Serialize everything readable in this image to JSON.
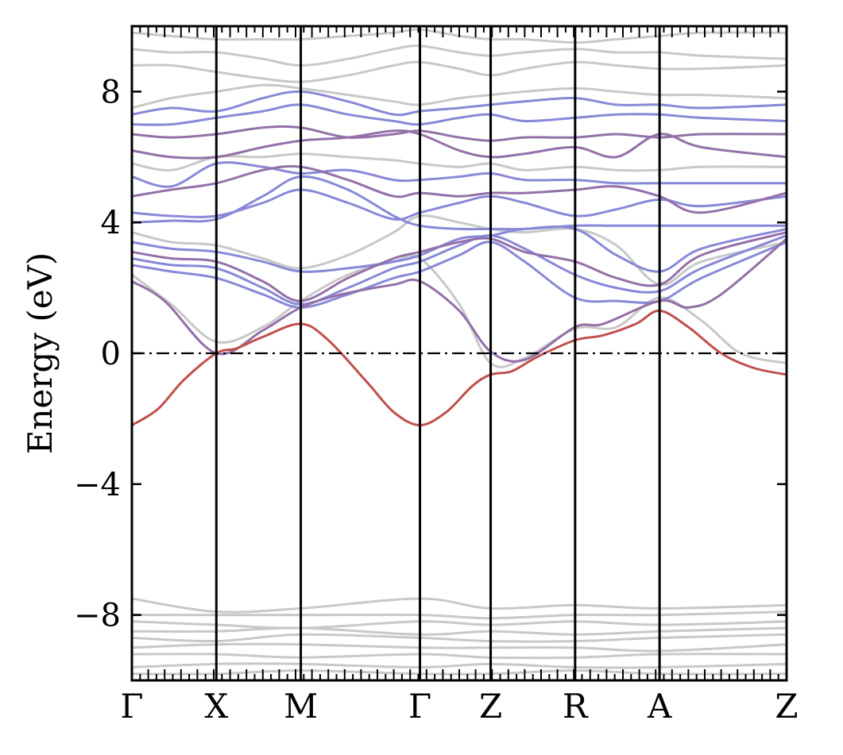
{
  "chart_data": {
    "type": "line",
    "title": "",
    "xlabel": "",
    "ylabel": "Energy (eV)",
    "ylim": [
      -10,
      10
    ],
    "yticks": [
      {
        "value": 8,
        "label": "8"
      },
      {
        "value": 4,
        "label": "4"
      },
      {
        "value": 0,
        "label": "0"
      },
      {
        "value": -4,
        "label": "−4"
      },
      {
        "value": -8,
        "label": "−8"
      }
    ],
    "xlim": [
      0,
      1
    ],
    "kpoints": [
      {
        "label": "Γ",
        "position": 0.0
      },
      {
        "label": "X",
        "position": 0.129
      },
      {
        "label": "M",
        "position": 0.258
      },
      {
        "label": "Γ",
        "position": 0.44
      },
      {
        "label": "Z",
        "position": 0.548
      },
      {
        "label": "R",
        "position": 0.677
      },
      {
        "label": "A",
        "position": 0.806
      },
      {
        "label": "Z",
        "position": 1.0
      }
    ],
    "fermi_level": 0,
    "grid": false,
    "colors": {
      "red_band": "#c0504d",
      "purple_band": "#9370a8",
      "blue_band": "#8888d8",
      "gray_band": "#c8c8c8",
      "frame": "#000000"
    },
    "series": [
      {
        "character": "red",
        "x": [
          0,
          0.04,
          0.08,
          0.129,
          0.16,
          0.2,
          0.258,
          0.3,
          0.36,
          0.4,
          0.44,
          0.48,
          0.52,
          0.548,
          0.58,
          0.62,
          0.677,
          0.72,
          0.77,
          0.806,
          0.85,
          0.9,
          0.95,
          1.0
        ],
        "y": [
          -2.2,
          -1.7,
          -0.8,
          0.0,
          0.15,
          0.5,
          0.9,
          0.4,
          -0.9,
          -1.8,
          -2.2,
          -1.8,
          -1.0,
          -0.65,
          -0.55,
          -0.1,
          0.4,
          0.55,
          0.9,
          1.3,
          0.8,
          0.0,
          -0.45,
          -0.65
        ]
      },
      {
        "character": "purple",
        "x": [
          0,
          0.05,
          0.129,
          0.2,
          0.258,
          0.32,
          0.4,
          0.44,
          0.5,
          0.548,
          0.6,
          0.677,
          0.72,
          0.806,
          0.85,
          0.9,
          1.0
        ],
        "y": [
          2.2,
          1.6,
          0.0,
          0.7,
          1.4,
          1.8,
          2.1,
          2.2,
          1.3,
          0.05,
          -0.2,
          0.8,
          0.9,
          1.6,
          1.4,
          1.8,
          3.5
        ]
      },
      {
        "character": "gray",
        "x": [
          0,
          0.06,
          0.129,
          0.2,
          0.258,
          0.33,
          0.4,
          0.44,
          0.5,
          0.548,
          0.6,
          0.677,
          0.74,
          0.806,
          0.87,
          0.93,
          1.0
        ],
        "y": [
          2.4,
          1.5,
          0.35,
          0.8,
          1.6,
          2.4,
          2.8,
          2.9,
          1.5,
          -0.3,
          -0.15,
          0.75,
          0.8,
          1.7,
          1.0,
          0.0,
          -0.3
        ]
      },
      {
        "character": "blue",
        "x": [
          0,
          0.06,
          0.129,
          0.2,
          0.258,
          0.33,
          0.4,
          0.44,
          0.5,
          0.548,
          0.6,
          0.677,
          0.74,
          0.806,
          0.87,
          1.0
        ],
        "y": [
          2.7,
          2.5,
          2.3,
          1.8,
          1.4,
          1.8,
          2.3,
          2.5,
          3.0,
          3.4,
          2.8,
          1.7,
          1.6,
          1.6,
          2.3,
          3.4
        ]
      },
      {
        "character": "blue",
        "x": [
          0,
          0.06,
          0.129,
          0.2,
          0.258,
          0.33,
          0.4,
          0.44,
          0.5,
          0.548,
          0.6,
          0.677,
          0.74,
          0.806,
          0.87,
          1.0
        ],
        "y": [
          2.9,
          2.7,
          2.6,
          2.0,
          1.5,
          2.0,
          2.6,
          2.8,
          3.3,
          3.6,
          3.2,
          2.4,
          2.0,
          1.9,
          2.6,
          3.6
        ]
      },
      {
        "character": "purple",
        "x": [
          0,
          0.06,
          0.129,
          0.2,
          0.258,
          0.33,
          0.4,
          0.44,
          0.5,
          0.548,
          0.6,
          0.677,
          0.74,
          0.806,
          0.87,
          1.0
        ],
        "y": [
          3.1,
          2.9,
          2.8,
          2.2,
          1.6,
          2.3,
          2.9,
          3.1,
          3.4,
          3.5,
          3.1,
          2.8,
          2.3,
          2.1,
          3.0,
          3.7
        ]
      },
      {
        "character": "blue",
        "x": [
          0,
          0.06,
          0.129,
          0.2,
          0.258,
          0.33,
          0.4,
          0.44,
          0.5,
          0.548,
          0.6,
          0.677,
          0.74,
          0.806,
          0.87,
          1.0
        ],
        "y": [
          3.4,
          3.2,
          3.1,
          2.8,
          2.5,
          2.6,
          2.8,
          3.0,
          3.5,
          3.6,
          3.8,
          3.8,
          3.0,
          2.5,
          3.2,
          3.8
        ]
      },
      {
        "character": "gray",
        "x": [
          0,
          0.06,
          0.129,
          0.2,
          0.258,
          0.33,
          0.4,
          0.44,
          0.5,
          0.548,
          0.6,
          0.677,
          0.74,
          0.806,
          0.87,
          1.0
        ],
        "y": [
          3.7,
          3.4,
          3.3,
          2.9,
          2.6,
          3.0,
          3.7,
          4.2,
          4.0,
          3.8,
          3.7,
          3.8,
          3.3,
          2.1,
          2.8,
          3.4
        ]
      },
      {
        "character": "blue",
        "x": [
          0,
          0.06,
          0.129,
          0.2,
          0.258,
          0.33,
          0.4,
          0.44,
          0.5,
          0.548,
          0.6,
          0.677,
          0.74,
          0.806,
          0.87,
          1.0
        ],
        "y": [
          4.0,
          4.05,
          4.1,
          4.8,
          5.4,
          5.0,
          4.2,
          3.9,
          3.8,
          3.8,
          3.8,
          3.9,
          3.9,
          3.9,
          3.9,
          3.9
        ]
      },
      {
        "character": "blue",
        "x": [
          0,
          0.06,
          0.129,
          0.2,
          0.258,
          0.33,
          0.4,
          0.44,
          0.5,
          0.548,
          0.6,
          0.677,
          0.74,
          0.806,
          0.87,
          1.0
        ],
        "y": [
          4.3,
          4.2,
          4.2,
          4.6,
          5.0,
          4.6,
          4.1,
          4.3,
          4.6,
          4.8,
          4.6,
          4.2,
          4.4,
          4.7,
          4.5,
          4.8
        ]
      },
      {
        "character": "purple",
        "x": [
          0,
          0.06,
          0.129,
          0.2,
          0.258,
          0.33,
          0.4,
          0.44,
          0.5,
          0.548,
          0.6,
          0.677,
          0.74,
          0.806,
          0.87,
          1.0
        ],
        "y": [
          4.8,
          5.0,
          5.2,
          5.6,
          5.7,
          5.3,
          4.8,
          4.9,
          4.8,
          4.9,
          4.9,
          5.0,
          5.1,
          4.8,
          4.3,
          4.9
        ]
      },
      {
        "character": "blue",
        "x": [
          0,
          0.06,
          0.129,
          0.2,
          0.258,
          0.33,
          0.4,
          0.44,
          0.5,
          0.548,
          0.6,
          0.677,
          0.74,
          0.806,
          0.87,
          1.0
        ],
        "y": [
          5.4,
          5.1,
          5.8,
          5.7,
          5.5,
          5.6,
          5.3,
          5.3,
          5.4,
          5.5,
          5.3,
          5.3,
          5.2,
          5.2,
          5.2,
          5.2
        ]
      },
      {
        "character": "gray",
        "x": [
          0,
          0.06,
          0.129,
          0.2,
          0.258,
          0.33,
          0.4,
          0.44,
          0.5,
          0.548,
          0.6,
          0.677,
          0.74,
          0.806,
          0.87,
          1.0
        ],
        "y": [
          5.8,
          5.6,
          6.0,
          6.0,
          6.1,
          6.0,
          5.9,
          5.8,
          5.7,
          5.8,
          5.6,
          5.7,
          5.6,
          5.6,
          5.7,
          5.7
        ]
      },
      {
        "character": "purple",
        "x": [
          0,
          0.06,
          0.129,
          0.2,
          0.258,
          0.33,
          0.4,
          0.44,
          0.5,
          0.548,
          0.6,
          0.677,
          0.74,
          0.806,
          0.87,
          1.0
        ],
        "y": [
          6.2,
          6.0,
          6.0,
          6.3,
          6.5,
          6.6,
          6.8,
          6.7,
          6.2,
          6.0,
          6.1,
          6.3,
          6.0,
          6.7,
          6.3,
          6.0
        ]
      },
      {
        "character": "purple",
        "x": [
          0,
          0.06,
          0.129,
          0.2,
          0.258,
          0.33,
          0.4,
          0.44,
          0.5,
          0.548,
          0.6,
          0.677,
          0.74,
          0.806,
          0.87,
          1.0
        ],
        "y": [
          6.7,
          6.6,
          6.7,
          6.9,
          6.9,
          6.6,
          6.7,
          6.8,
          6.6,
          6.5,
          6.6,
          6.6,
          6.7,
          6.6,
          6.7,
          6.7
        ]
      },
      {
        "character": "blue",
        "x": [
          0,
          0.06,
          0.129,
          0.2,
          0.258,
          0.33,
          0.4,
          0.44,
          0.5,
          0.548,
          0.6,
          0.677,
          0.74,
          0.806,
          0.87,
          1.0
        ],
        "y": [
          7.0,
          7.0,
          7.2,
          7.4,
          7.6,
          7.3,
          7.1,
          7.0,
          7.2,
          7.3,
          7.1,
          7.2,
          7.3,
          7.3,
          7.2,
          7.1
        ]
      },
      {
        "character": "blue",
        "x": [
          0,
          0.06,
          0.129,
          0.2,
          0.258,
          0.33,
          0.4,
          0.44,
          0.5,
          0.548,
          0.6,
          0.677,
          0.74,
          0.806,
          0.87,
          1.0
        ],
        "y": [
          7.3,
          7.5,
          7.4,
          7.8,
          8.0,
          7.7,
          7.3,
          7.4,
          7.5,
          7.6,
          7.7,
          7.8,
          7.6,
          7.6,
          7.5,
          7.6
        ]
      },
      {
        "character": "gray",
        "x": [
          0,
          0.06,
          0.129,
          0.2,
          0.258,
          0.33,
          0.4,
          0.44,
          0.5,
          0.548,
          0.6,
          0.677,
          0.74,
          0.806,
          0.87,
          1.0
        ],
        "y": [
          7.5,
          7.8,
          8.0,
          8.2,
          8.1,
          7.9,
          7.7,
          7.6,
          7.8,
          7.9,
          8.0,
          8.1,
          8.0,
          7.9,
          7.9,
          7.8
        ]
      },
      {
        "character": "gray",
        "x": [
          0,
          0.06,
          0.129,
          0.2,
          0.258,
          0.33,
          0.4,
          0.44,
          0.5,
          0.548,
          0.6,
          0.677,
          0.74,
          0.806,
          0.87,
          1.0
        ],
        "y": [
          8.8,
          8.8,
          8.6,
          8.4,
          8.3,
          8.5,
          8.8,
          8.9,
          8.7,
          8.5,
          8.7,
          8.9,
          8.8,
          8.7,
          8.7,
          8.8
        ]
      },
      {
        "character": "gray",
        "x": [
          0,
          0.06,
          0.129,
          0.2,
          0.258,
          0.33,
          0.4,
          0.44,
          0.5,
          0.548,
          0.6,
          0.677,
          0.74,
          0.806,
          0.87,
          1.0
        ],
        "y": [
          9.3,
          9.2,
          9.2,
          9.0,
          8.8,
          9.0,
          9.3,
          9.4,
          9.2,
          9.1,
          9.2,
          9.3,
          9.2,
          9.2,
          9.1,
          9.0
        ]
      },
      {
        "character": "gray",
        "x": [
          0,
          0.06,
          0.129,
          0.2,
          0.258,
          0.33,
          0.4,
          0.44,
          0.5,
          0.548,
          0.6,
          0.677,
          0.74,
          0.806,
          0.87,
          1.0
        ],
        "y": [
          9.8,
          9.7,
          9.6,
          9.6,
          9.6,
          9.7,
          9.8,
          9.9,
          9.7,
          9.6,
          9.6,
          9.5,
          9.6,
          9.7,
          9.8,
          9.8
        ]
      },
      {
        "character": "gray",
        "x": [
          0,
          0.129,
          0.258,
          0.44,
          0.548,
          0.677,
          0.806,
          1.0
        ],
        "y": [
          -7.5,
          -7.9,
          -7.8,
          -7.5,
          -7.8,
          -7.7,
          -7.8,
          -7.7
        ]
      },
      {
        "character": "gray",
        "x": [
          0,
          0.129,
          0.258,
          0.44,
          0.548,
          0.677,
          0.806,
          1.0
        ],
        "y": [
          -8.0,
          -8.0,
          -8.0,
          -8.0,
          -8.1,
          -8.0,
          -8.0,
          -7.9
        ]
      },
      {
        "character": "gray",
        "x": [
          0,
          0.129,
          0.258,
          0.44,
          0.548,
          0.677,
          0.806,
          1.0
        ],
        "y": [
          -8.2,
          -8.3,
          -8.4,
          -8.2,
          -8.3,
          -8.2,
          -8.3,
          -8.2
        ]
      },
      {
        "character": "gray",
        "x": [
          0,
          0.129,
          0.258,
          0.44,
          0.548,
          0.677,
          0.806,
          1.0
        ],
        "y": [
          -8.5,
          -8.5,
          -8.4,
          -8.6,
          -8.5,
          -8.6,
          -8.5,
          -8.4
        ]
      },
      {
        "character": "gray",
        "x": [
          0,
          0.129,
          0.258,
          0.44,
          0.548,
          0.677,
          0.806,
          1.0
        ],
        "y": [
          -8.7,
          -8.8,
          -8.6,
          -8.7,
          -8.8,
          -8.8,
          -8.7,
          -8.6
        ]
      },
      {
        "character": "gray",
        "x": [
          0,
          0.129,
          0.258,
          0.44,
          0.548,
          0.677,
          0.806,
          1.0
        ],
        "y": [
          -9.0,
          -8.9,
          -8.9,
          -9.0,
          -9.0,
          -9.0,
          -9.1,
          -8.9
        ]
      },
      {
        "character": "gray",
        "x": [
          0,
          0.129,
          0.258,
          0.44,
          0.548,
          0.677,
          0.806,
          1.0
        ],
        "y": [
          -9.2,
          -9.2,
          -9.3,
          -9.2,
          -9.3,
          -9.3,
          -9.2,
          -9.2
        ]
      },
      {
        "character": "gray",
        "x": [
          0,
          0.129,
          0.258,
          0.44,
          0.548,
          0.677,
          0.806,
          1.0
        ],
        "y": [
          -9.6,
          -9.5,
          -9.5,
          -9.6,
          -9.5,
          -9.6,
          -9.6,
          -9.5
        ]
      },
      {
        "character": "gray",
        "x": [
          0,
          0.129,
          0.258,
          0.44,
          0.548,
          0.677,
          0.806,
          1.0
        ],
        "y": [
          -9.8,
          -9.8,
          -9.7,
          -9.8,
          -9.8,
          -9.7,
          -9.8,
          -9.8
        ]
      }
    ]
  }
}
